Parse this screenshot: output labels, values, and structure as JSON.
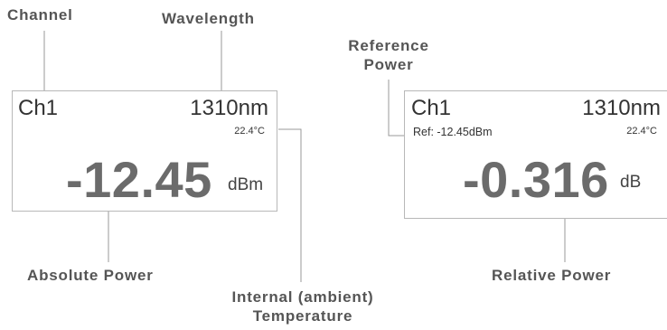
{
  "callouts": {
    "channel": "Channel",
    "wavelength": "Wavelength",
    "reference_power_line1": "Reference",
    "reference_power_line2": "Power",
    "absolute_power": "Absolute Power",
    "internal_temperature_line1": "Internal (ambient)",
    "internal_temperature_line2": "Temperature",
    "relative_power": "Relative Power"
  },
  "left_display": {
    "channel": "Ch1",
    "wavelength": "1310nm",
    "temperature": "22.4°C",
    "reading": "-12.45",
    "unit": "dBm"
  },
  "right_display": {
    "channel": "Ch1",
    "wavelength": "1310nm",
    "temperature": "22.4°C",
    "reference": "Ref: -12.45dBm",
    "reading": "-0.316",
    "unit": "dB"
  }
}
